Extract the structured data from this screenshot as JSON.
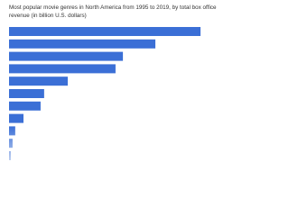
{
  "chart_data": {
    "type": "bar",
    "orientation": "horizontal",
    "title": "Most popular movie genres in North America from 1995 to 2019, by total box office revenue (in billion U.S. dollars)",
    "categories": [
      null,
      null,
      null,
      null,
      null,
      null,
      null,
      null,
      null,
      null,
      null
    ],
    "values": [
      64.9,
      49.6,
      38.6,
      36.1,
      19.9,
      11.9,
      10.7,
      4.9,
      2.1,
      1.2,
      0.6
    ],
    "color": "#3b6fd6",
    "xlim": [
      0,
      75
    ]
  }
}
